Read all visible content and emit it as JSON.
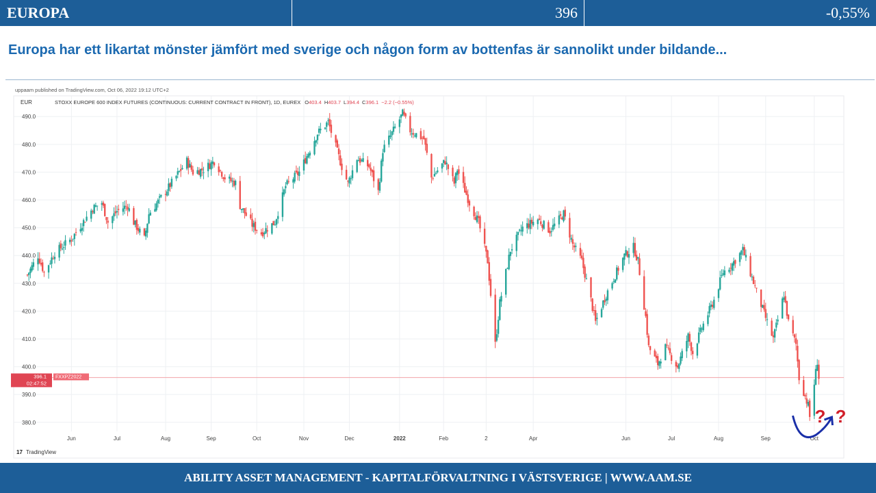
{
  "header": {
    "title": "EUROPA",
    "value": "396",
    "change": "-0,55%"
  },
  "subtitle": "Europa har ett likartat mönster jämfört med sverige och någon form av bottenfas är sannolikt under bildande...",
  "footer": {
    "text": "ABILITY ASSET MANAGEMENT -  KAPITALFÖRVALTNING I VÄSTSVERIGE   |   WWW.AAM.SE"
  },
  "chart_data": {
    "type": "candlestick",
    "published_by": "uppaam published on TradingView.com, Oct 06, 2022 19:12 UTC+2",
    "currency": "EUR",
    "instrument": "STOXX EUROPE 600 INDEX FUTURES (CONTINUOUS: CURRENT CONTRACT IN FRONT), 1D, EUREX",
    "ohlc": {
      "o_label": "O",
      "o": "403.4",
      "h_label": "H",
      "h": "403.7",
      "l_label": "L",
      "l": "394.4",
      "c_label": "C",
      "c": "396.1",
      "change": "−2.2 (−0.55%)"
    },
    "price_tag": {
      "price": "396.1",
      "countdown": "02:47:52",
      "symbol": "FXXPZ2022"
    },
    "watermark": "TradingView",
    "ylim": [
      376,
      494
    ],
    "yticks": [
      380,
      390,
      400,
      410,
      420,
      430,
      440,
      450,
      460,
      470,
      480,
      490
    ],
    "ytick_labels": [
      "380.0",
      "390.0",
      "400.0",
      "410.0",
      "420.0",
      "430.0",
      "440.0",
      "450.0",
      "460.0",
      "470.0",
      "480.0",
      "490.0"
    ],
    "x_range": [
      "2021-05-03",
      "2022-10-13"
    ],
    "x_ticks": [
      {
        "date": "2021-06-01",
        "label": "Jun"
      },
      {
        "date": "2021-07-01",
        "label": "Jul"
      },
      {
        "date": "2021-08-02",
        "label": "Aug"
      },
      {
        "date": "2021-09-01",
        "label": "Sep"
      },
      {
        "date": "2021-10-01",
        "label": "Oct"
      },
      {
        "date": "2021-11-01",
        "label": "Nov"
      },
      {
        "date": "2021-12-01",
        "label": "Dec"
      },
      {
        "date": "2022-01-03",
        "label": "2022"
      },
      {
        "date": "2022-02-01",
        "label": "Feb"
      },
      {
        "date": "2022-03-01",
        "label": "2"
      },
      {
        "date": "2022-04-01",
        "label": "Apr"
      },
      {
        "date": "2022-06-01",
        "label": "Jun"
      },
      {
        "date": "2022-07-01",
        "label": "Jul"
      },
      {
        "date": "2022-08-01",
        "label": "Aug"
      },
      {
        "date": "2022-09-01",
        "label": "Sep"
      },
      {
        "date": "2022-10-03",
        "label": "Oct"
      }
    ],
    "close_anchors": [
      {
        "date": "2021-05-03",
        "close": 433
      },
      {
        "date": "2021-05-10",
        "close": 440
      },
      {
        "date": "2021-05-14",
        "close": 434
      },
      {
        "date": "2021-05-21",
        "close": 441
      },
      {
        "date": "2021-06-01",
        "close": 446
      },
      {
        "date": "2021-06-15",
        "close": 457
      },
      {
        "date": "2021-06-21",
        "close": 459
      },
      {
        "date": "2021-06-25",
        "close": 452
      },
      {
        "date": "2021-07-01",
        "close": 456
      },
      {
        "date": "2021-07-08",
        "close": 458
      },
      {
        "date": "2021-07-12",
        "close": 452
      },
      {
        "date": "2021-07-19",
        "close": 446
      },
      {
        "date": "2021-07-22",
        "close": 455
      },
      {
        "date": "2021-08-02",
        "close": 463
      },
      {
        "date": "2021-08-16",
        "close": 474
      },
      {
        "date": "2021-08-20",
        "close": 470
      },
      {
        "date": "2021-08-27",
        "close": 471
      },
      {
        "date": "2021-09-03",
        "close": 474
      },
      {
        "date": "2021-09-10",
        "close": 468
      },
      {
        "date": "2021-09-17",
        "close": 466
      },
      {
        "date": "2021-09-20",
        "close": 458
      },
      {
        "date": "2021-09-28",
        "close": 451
      },
      {
        "date": "2021-10-04",
        "close": 448
      },
      {
        "date": "2021-10-06",
        "close": 449
      },
      {
        "date": "2021-10-13",
        "close": 452
      },
      {
        "date": "2021-10-20",
        "close": 465
      },
      {
        "date": "2021-10-29",
        "close": 470
      },
      {
        "date": "2021-11-10",
        "close": 484
      },
      {
        "date": "2021-11-17",
        "close": 488
      },
      {
        "date": "2021-11-26",
        "close": 472
      },
      {
        "date": "2021-11-30",
        "close": 466
      },
      {
        "date": "2021-12-06",
        "close": 475
      },
      {
        "date": "2021-12-14",
        "close": 472
      },
      {
        "date": "2021-12-20",
        "close": 463
      },
      {
        "date": "2021-12-23",
        "close": 478
      },
      {
        "date": "2022-01-05",
        "close": 491
      },
      {
        "date": "2022-01-10",
        "close": 485
      },
      {
        "date": "2022-01-19",
        "close": 482
      },
      {
        "date": "2022-01-24",
        "close": 468
      },
      {
        "date": "2022-02-02",
        "close": 474
      },
      {
        "date": "2022-02-08",
        "close": 466
      },
      {
        "date": "2022-02-10",
        "close": 471
      },
      {
        "date": "2022-02-18",
        "close": 459
      },
      {
        "date": "2022-02-24",
        "close": 452
      },
      {
        "date": "2022-03-02",
        "close": 438
      },
      {
        "date": "2022-03-07",
        "close": 408
      },
      {
        "date": "2022-03-10",
        "close": 423
      },
      {
        "date": "2022-03-17",
        "close": 442
      },
      {
        "date": "2022-03-25",
        "close": 450
      },
      {
        "date": "2022-04-04",
        "close": 453
      },
      {
        "date": "2022-04-12",
        "close": 449
      },
      {
        "date": "2022-04-21",
        "close": 455
      },
      {
        "date": "2022-04-27",
        "close": 444
      },
      {
        "date": "2022-05-03",
        "close": 438
      },
      {
        "date": "2022-05-09",
        "close": 424
      },
      {
        "date": "2022-05-12",
        "close": 416
      },
      {
        "date": "2022-05-19",
        "close": 426
      },
      {
        "date": "2022-05-31",
        "close": 440
      },
      {
        "date": "2022-06-06",
        "close": 443
      },
      {
        "date": "2022-06-09",
        "close": 438
      },
      {
        "date": "2022-06-14",
        "close": 418
      },
      {
        "date": "2022-06-16",
        "close": 407
      },
      {
        "date": "2022-06-22",
        "close": 401
      },
      {
        "date": "2022-06-27",
        "close": 407
      },
      {
        "date": "2022-07-05",
        "close": 400
      },
      {
        "date": "2022-07-12",
        "close": 411
      },
      {
        "date": "2022-07-15",
        "close": 405
      },
      {
        "date": "2022-07-21",
        "close": 414
      },
      {
        "date": "2022-07-29",
        "close": 424
      },
      {
        "date": "2022-08-04",
        "close": 434
      },
      {
        "date": "2022-08-10",
        "close": 437
      },
      {
        "date": "2022-08-17",
        "close": 442
      },
      {
        "date": "2022-08-23",
        "close": 432
      },
      {
        "date": "2022-08-26",
        "close": 427
      },
      {
        "date": "2022-09-02",
        "close": 416
      },
      {
        "date": "2022-09-06",
        "close": 410
      },
      {
        "date": "2022-09-13",
        "close": 426
      },
      {
        "date": "2022-09-16",
        "close": 416
      },
      {
        "date": "2022-09-21",
        "close": 408
      },
      {
        "date": "2022-09-23",
        "close": 396
      },
      {
        "date": "2022-09-29",
        "close": 386
      },
      {
        "date": "2022-09-30",
        "close": 382
      },
      {
        "date": "2022-10-04",
        "close": 398
      },
      {
        "date": "2022-10-05",
        "close": 402
      },
      {
        "date": "2022-10-06",
        "close": 396.1
      }
    ],
    "annotation": {
      "marks": [
        "?",
        "?"
      ],
      "color": "#d11f2a",
      "arrow_color": "#1a2fa8",
      "shape": "curved-arrow-bottom"
    },
    "colors": {
      "up": "#26a69a",
      "down": "#ef5350",
      "grid": "#eef0f3",
      "price_line": "#f2a3a8",
      "price_tag": "#e04553"
    },
    "grid": true
  },
  "colors": {
    "banner": "#1d5e98",
    "subtitle": "#1b69b0"
  }
}
